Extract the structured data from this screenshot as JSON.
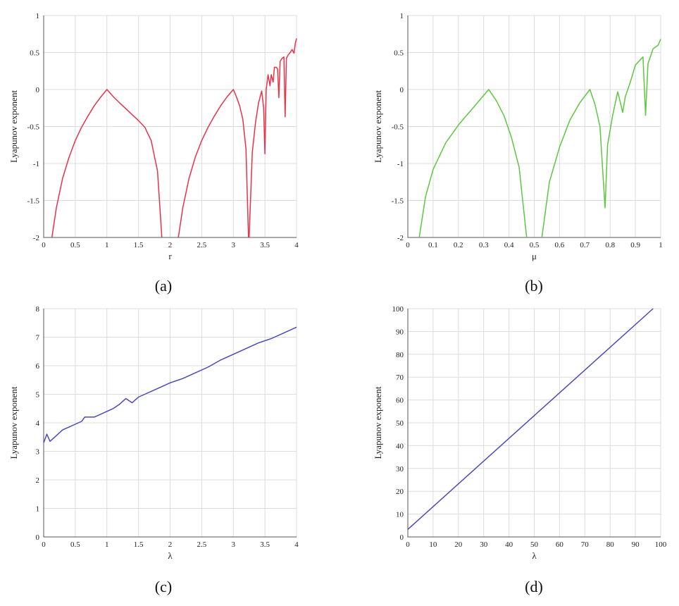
{
  "figure": {
    "panels": [
      {
        "caption": "(a)",
        "xlabel": "r",
        "ylabel": "Lyapunov exponent",
        "xlim": [
          0,
          4
        ],
        "ylim": [
          -2,
          1
        ],
        "xticks": [
          "0",
          "0.5",
          "1",
          "1.5",
          "2",
          "2.5",
          "3",
          "3.5",
          "4"
        ],
        "yticks": [
          "-2",
          "-1.5",
          "-1",
          "-0.5",
          "0",
          "0.5",
          "1"
        ],
        "color": "#e8324a"
      },
      {
        "caption": "(b)",
        "xlabel": "μ",
        "ylabel": "Lyapunov exponent",
        "xlim": [
          0,
          1
        ],
        "ylim": [
          -2,
          1
        ],
        "xticks": [
          "0",
          "0.1",
          "0.2",
          "0.3",
          "0.4",
          "0.5",
          "0.6",
          "0.7",
          "0.8",
          "0.9",
          "1"
        ],
        "yticks": [
          "-2",
          "-1.5",
          "-1",
          "-0.5",
          "0",
          "0.5",
          "1"
        ],
        "color": "#5cc840"
      },
      {
        "caption": "(c)",
        "xlabel": "λ",
        "ylabel": "Lyapunov exponent",
        "xlim": [
          0,
          4
        ],
        "ylim": [
          0,
          8
        ],
        "xticks": [
          "0",
          "0.5",
          "1",
          "1.5",
          "2",
          "2.5",
          "3",
          "3.5",
          "4"
        ],
        "yticks": [
          "0",
          "1",
          "2",
          "3",
          "4",
          "5",
          "6",
          "7",
          "8"
        ],
        "color": "#4a4ab8"
      },
      {
        "caption": "(d)",
        "xlabel": "λ",
        "ylabel": "Lyapunov exponent",
        "xlim": [
          0,
          100
        ],
        "ylim": [
          0,
          100
        ],
        "xticks": [
          "0",
          "10",
          "20",
          "30",
          "40",
          "50",
          "60",
          "70",
          "80",
          "90",
          "100"
        ],
        "yticks": [
          "0",
          "10",
          "20",
          "30",
          "40",
          "50",
          "60",
          "70",
          "80",
          "90",
          "100"
        ],
        "color": "#4a4ab8"
      }
    ]
  },
  "chart_data": [
    {
      "type": "line",
      "xlabel": "r",
      "ylabel": "Lyapunov exponent",
      "xlim": [
        0,
        4
      ],
      "ylim": [
        -2,
        1
      ],
      "grid": true,
      "series": [
        {
          "values": [
            [
              0.13,
              -2.0
            ],
            [
              0.2,
              -1.6
            ],
            [
              0.3,
              -1.2
            ],
            [
              0.4,
              -0.92
            ],
            [
              0.5,
              -0.69
            ],
            [
              0.6,
              -0.51
            ],
            [
              0.7,
              -0.36
            ],
            [
              0.8,
              -0.22
            ],
            [
              0.9,
              -0.105
            ],
            [
              1.0,
              0.0
            ],
            [
              1.1,
              -0.095
            ],
            [
              1.2,
              -0.18
            ],
            [
              1.3,
              -0.26
            ],
            [
              1.4,
              -0.34
            ],
            [
              1.5,
              -0.42
            ],
            [
              1.6,
              -0.51
            ],
            [
              1.7,
              -0.69
            ],
            [
              1.8,
              -1.1
            ],
            [
              1.87,
              -2.0
            ]
          ]
        },
        {
          "values": [
            [
              2.13,
              -2.0
            ],
            [
              2.2,
              -1.6
            ],
            [
              2.3,
              -1.2
            ],
            [
              2.4,
              -0.91
            ],
            [
              2.5,
              -0.69
            ],
            [
              2.6,
              -0.51
            ],
            [
              2.7,
              -0.36
            ],
            [
              2.8,
              -0.22
            ],
            [
              2.9,
              -0.1
            ],
            [
              3.0,
              0.0
            ],
            [
              3.05,
              -0.1
            ],
            [
              3.1,
              -0.22
            ],
            [
              3.15,
              -0.4
            ],
            [
              3.2,
              -0.8
            ],
            [
              3.24,
              -2.0
            ]
          ]
        },
        {
          "values": [
            [
              3.25,
              -2.0
            ],
            [
              3.3,
              -0.85
            ],
            [
              3.35,
              -0.45
            ],
            [
              3.4,
              -0.18
            ],
            [
              3.45,
              -0.02
            ],
            [
              3.48,
              -0.25
            ],
            [
              3.5,
              -0.87
            ],
            [
              3.52,
              0.0
            ],
            [
              3.55,
              0.2
            ],
            [
              3.58,
              0.05
            ],
            [
              3.6,
              0.2
            ],
            [
              3.63,
              0.1
            ],
            [
              3.65,
              0.3
            ],
            [
              3.68,
              0.3
            ],
            [
              3.7,
              0.28
            ],
            [
              3.72,
              -0.11
            ],
            [
              3.74,
              0.38
            ],
            [
              3.77,
              0.42
            ],
            [
              3.8,
              0.44
            ],
            [
              3.82,
              -0.37
            ],
            [
              3.84,
              0.42
            ],
            [
              3.87,
              0.47
            ],
            [
              3.9,
              0.5
            ],
            [
              3.93,
              0.54
            ],
            [
              3.96,
              0.49
            ],
            [
              3.98,
              0.62
            ],
            [
              4.0,
              0.69
            ]
          ]
        }
      ]
    },
    {
      "type": "line",
      "xlabel": "μ",
      "ylabel": "Lyapunov exponent",
      "xlim": [
        0,
        1
      ],
      "ylim": [
        -2,
        1
      ],
      "grid": true,
      "series": [
        {
          "values": [
            [
              0.045,
              -2.0
            ],
            [
              0.07,
              -1.45
            ],
            [
              0.1,
              -1.08
            ],
            [
              0.15,
              -0.72
            ],
            [
              0.2,
              -0.48
            ],
            [
              0.25,
              -0.28
            ],
            [
              0.3,
              -0.08
            ],
            [
              0.32,
              0.0
            ],
            [
              0.35,
              -0.15
            ],
            [
              0.38,
              -0.35
            ],
            [
              0.41,
              -0.65
            ],
            [
              0.44,
              -1.05
            ],
            [
              0.47,
              -2.0
            ]
          ]
        },
        {
          "values": [
            [
              0.53,
              -2.0
            ],
            [
              0.56,
              -1.25
            ],
            [
              0.6,
              -0.78
            ],
            [
              0.64,
              -0.42
            ],
            [
              0.68,
              -0.18
            ],
            [
              0.72,
              0.0
            ],
            [
              0.74,
              -0.2
            ],
            [
              0.76,
              -0.5
            ],
            [
              0.78,
              -1.6
            ],
            [
              0.79,
              -0.75
            ],
            [
              0.81,
              -0.35
            ],
            [
              0.83,
              -0.03
            ],
            [
              0.85,
              -0.31
            ],
            [
              0.86,
              -0.1
            ],
            [
              0.88,
              0.1
            ],
            [
              0.9,
              0.33
            ],
            [
              0.93,
              0.44
            ],
            [
              0.94,
              -0.35
            ],
            [
              0.95,
              0.35
            ],
            [
              0.97,
              0.55
            ],
            [
              0.99,
              0.6
            ],
            [
              1.0,
              0.68
            ]
          ]
        }
      ]
    },
    {
      "type": "line",
      "xlabel": "λ",
      "ylabel": "Lyapunov exponent",
      "xlim": [
        0,
        4
      ],
      "ylim": [
        0,
        8
      ],
      "grid": true,
      "series": [
        {
          "values": [
            [
              0.0,
              3.3
            ],
            [
              0.05,
              3.6
            ],
            [
              0.1,
              3.35
            ],
            [
              0.2,
              3.55
            ],
            [
              0.3,
              3.75
            ],
            [
              0.4,
              3.85
            ],
            [
              0.5,
              3.95
            ],
            [
              0.6,
              4.05
            ],
            [
              0.65,
              4.2
            ],
            [
              0.8,
              4.2
            ],
            [
              0.9,
              4.3
            ],
            [
              1.0,
              4.4
            ],
            [
              1.1,
              4.5
            ],
            [
              1.2,
              4.65
            ],
            [
              1.3,
              4.85
            ],
            [
              1.4,
              4.7
            ],
            [
              1.5,
              4.9
            ],
            [
              1.6,
              5.0
            ],
            [
              1.8,
              5.2
            ],
            [
              2.0,
              5.4
            ],
            [
              2.2,
              5.55
            ],
            [
              2.4,
              5.75
            ],
            [
              2.6,
              5.95
            ],
            [
              2.8,
              6.2
            ],
            [
              3.0,
              6.4
            ],
            [
              3.2,
              6.6
            ],
            [
              3.4,
              6.8
            ],
            [
              3.6,
              6.95
            ],
            [
              3.8,
              7.15
            ],
            [
              4.0,
              7.35
            ]
          ]
        }
      ]
    },
    {
      "type": "line",
      "xlabel": "λ",
      "ylabel": "Lyapunov exponent",
      "xlim": [
        0,
        100
      ],
      "ylim": [
        0,
        100
      ],
      "grid": true,
      "series": [
        {
          "values": [
            [
              0,
              3.3
            ],
            [
              97,
              100
            ]
          ]
        }
      ]
    }
  ]
}
